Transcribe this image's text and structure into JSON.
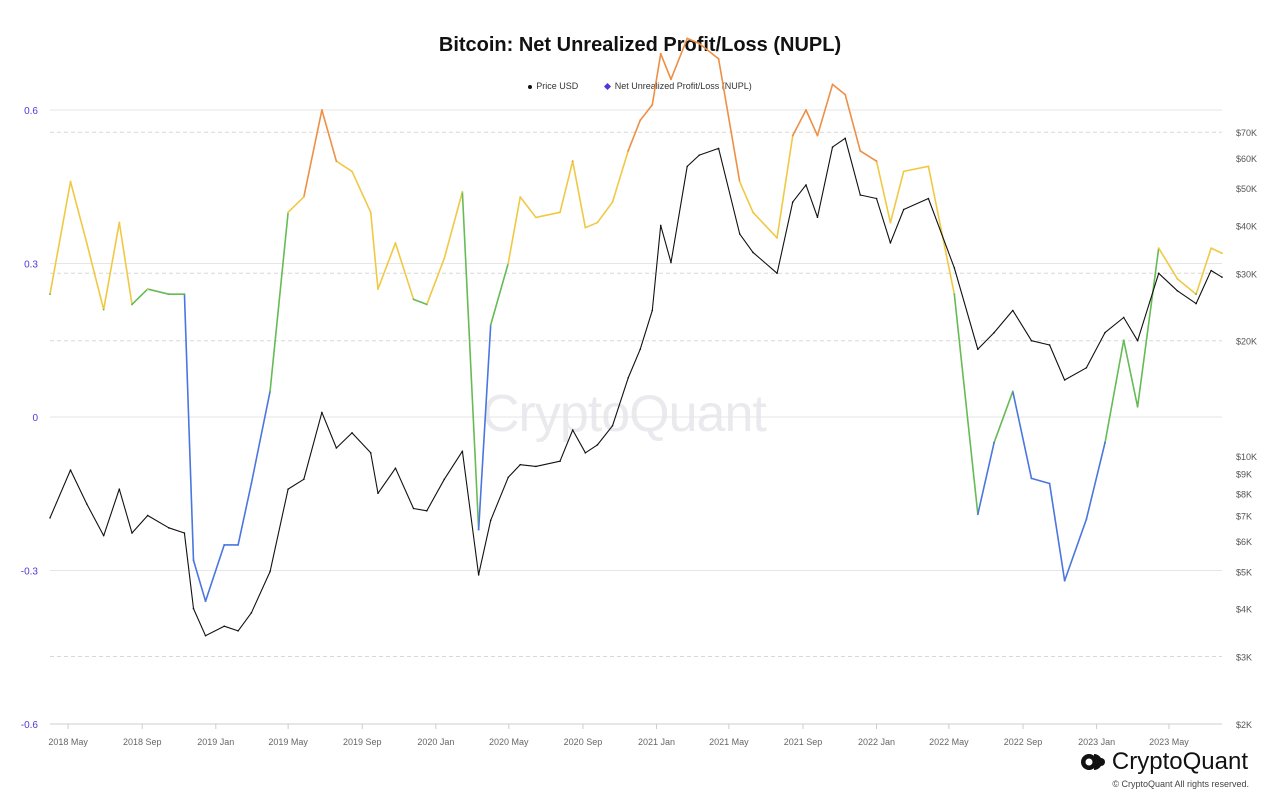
{
  "title": "Bitcoin: Net Unrealized Profit/Loss (NUPL)",
  "legend": [
    {
      "label": "Price USD",
      "marker": "circle",
      "color": "#111111"
    },
    {
      "label": "Net Unrealized Profit/Loss (NUPL)",
      "marker": "diamond",
      "color": "#4b3bd6"
    }
  ],
  "watermark": "CryptoQuant",
  "brand": {
    "name": "CryptoQuant",
    "copyright": "© CryptoQuant All rights reserved."
  },
  "colors": {
    "price": "#111111",
    "capitulation": "#4a76e0",
    "hope_fear": "#66bb55",
    "optimism_anxiety": "#f0c944",
    "belief_denial": "#ee8f45",
    "left_axis": "#4b3bd6"
  },
  "chart_data": {
    "type": "line",
    "title": "Bitcoin: Net Unrealized Profit/Loss (NUPL)",
    "x_tick_labels": [
      "2018 May",
      "2018 Sep",
      "2019 Jan",
      "2019 May",
      "2019 Sep",
      "2020 Jan",
      "2020 May",
      "2020 Sep",
      "2021 Jan",
      "2021 May",
      "2021 Sep",
      "2022 Jan",
      "2022 May",
      "2022 Sep",
      "2023 Jan",
      "2023 May"
    ],
    "x_ticks": [
      "2018-05-01",
      "2018-09-01",
      "2019-01-01",
      "2019-05-01",
      "2019-09-01",
      "2020-01-01",
      "2020-05-01",
      "2020-09-01",
      "2021-01-01",
      "2021-05-01",
      "2021-09-01",
      "2022-01-01",
      "2022-05-01",
      "2022-09-01",
      "2023-01-01",
      "2023-05-01"
    ],
    "x_range": [
      "2018-04-01",
      "2023-07-28"
    ],
    "y_left": {
      "label": "",
      "range": [
        -0.6,
        0.6
      ],
      "ticks": [
        "-0.6",
        "-0.3",
        "0",
        "0.3",
        "0.6"
      ],
      "tick_values": [
        -0.6,
        -0.3,
        0,
        0.3,
        0.6
      ]
    },
    "y_right": {
      "label": "",
      "scale": "log",
      "range": [
        2000,
        80000
      ],
      "ticks": [
        "$2K",
        "$3K",
        "$4K",
        "$5K",
        "$6K",
        "$7K",
        "$8K",
        "$9K",
        "$10K",
        "$20K",
        "$30K",
        "$40K",
        "$50K",
        "$60K",
        "$70K"
      ],
      "tick_values": [
        2000,
        3000,
        4000,
        5000,
        6000,
        7000,
        8000,
        9000,
        10000,
        20000,
        30000,
        40000,
        50000,
        60000,
        70000
      ]
    },
    "grid": true,
    "legend_position": "top-center",
    "series": [
      {
        "name": "Price USD",
        "axis": "right",
        "color": "#111111",
        "x": [
          "2018-04-01",
          "2018-05-05",
          "2018-06-01",
          "2018-06-29",
          "2018-07-25",
          "2018-08-15",
          "2018-09-10",
          "2018-10-15",
          "2018-11-10",
          "2018-11-25",
          "2018-12-15",
          "2019-01-15",
          "2019-02-07",
          "2019-03-01",
          "2019-04-01",
          "2019-05-01",
          "2019-05-27",
          "2019-06-26",
          "2019-07-20",
          "2019-08-15",
          "2019-09-15",
          "2019-09-27",
          "2019-10-26",
          "2019-11-25",
          "2019-12-17",
          "2020-01-15",
          "2020-02-14",
          "2020-03-12",
          "2020-04-01",
          "2020-04-30",
          "2020-05-20",
          "2020-06-15",
          "2020-07-25",
          "2020-08-15",
          "2020-09-05",
          "2020-09-25",
          "2020-10-20",
          "2020-11-15",
          "2020-12-05",
          "2020-12-25",
          "2021-01-08",
          "2021-01-25",
          "2021-02-21",
          "2021-03-13",
          "2021-04-14",
          "2021-05-19",
          "2021-06-10",
          "2021-07-20",
          "2021-08-15",
          "2021-09-06",
          "2021-09-25",
          "2021-10-20",
          "2021-11-10",
          "2021-12-05",
          "2022-01-01",
          "2022-01-24",
          "2022-02-15",
          "2022-03-28",
          "2022-05-10",
          "2022-06-18",
          "2022-07-15",
          "2022-08-15",
          "2022-09-15",
          "2022-10-15",
          "2022-11-09",
          "2022-12-15",
          "2023-01-15",
          "2023-02-15",
          "2023-03-10",
          "2023-04-14",
          "2023-05-15",
          "2023-06-15",
          "2023-07-10",
          "2023-07-28"
        ],
        "y": [
          6900,
          9200,
          7500,
          6200,
          8200,
          6300,
          7000,
          6500,
          6300,
          4000,
          3400,
          3600,
          3500,
          3900,
          5000,
          8200,
          8700,
          13000,
          10500,
          11500,
          10200,
          8000,
          9300,
          7300,
          7200,
          8700,
          10300,
          4900,
          6800,
          8800,
          9500,
          9400,
          9700,
          11700,
          10200,
          10700,
          12000,
          16000,
          19000,
          24000,
          40000,
          32000,
          57000,
          61000,
          63500,
          38000,
          34000,
          30000,
          46000,
          51000,
          42000,
          64000,
          67500,
          48000,
          47000,
          36000,
          44000,
          47000,
          31000,
          19000,
          21000,
          24000,
          20000,
          19500,
          15800,
          17000,
          21000,
          23000,
          20000,
          30000,
          27000,
          25000,
          30500,
          29300
        ]
      },
      {
        "name": "Net Unrealized Profit/Loss (NUPL)",
        "axis": "left",
        "color": "#4b3bd6",
        "x": [
          "2018-04-01",
          "2018-05-05",
          "2018-06-01",
          "2018-06-29",
          "2018-07-25",
          "2018-08-15",
          "2018-09-10",
          "2018-10-15",
          "2018-11-10",
          "2018-11-25",
          "2018-12-15",
          "2019-01-15",
          "2019-02-07",
          "2019-03-01",
          "2019-04-01",
          "2019-05-01",
          "2019-05-27",
          "2019-06-26",
          "2019-07-20",
          "2019-08-15",
          "2019-09-15",
          "2019-09-27",
          "2019-10-26",
          "2019-11-25",
          "2019-12-17",
          "2020-01-15",
          "2020-02-14",
          "2020-03-12",
          "2020-04-01",
          "2020-04-30",
          "2020-05-20",
          "2020-06-15",
          "2020-07-25",
          "2020-08-15",
          "2020-09-05",
          "2020-09-25",
          "2020-10-20",
          "2020-11-15",
          "2020-12-05",
          "2020-12-25",
          "2021-01-08",
          "2021-01-25",
          "2021-02-21",
          "2021-03-13",
          "2021-04-14",
          "2021-05-19",
          "2021-06-10",
          "2021-07-20",
          "2021-08-15",
          "2021-09-06",
          "2021-09-25",
          "2021-10-20",
          "2021-11-10",
          "2021-12-05",
          "2022-01-01",
          "2022-01-24",
          "2022-02-15",
          "2022-03-28",
          "2022-05-10",
          "2022-06-18",
          "2022-07-15",
          "2022-08-15",
          "2022-09-15",
          "2022-10-15",
          "2022-11-09",
          "2022-12-15",
          "2023-01-15",
          "2023-02-15",
          "2023-03-10",
          "2023-04-14",
          "2023-05-15",
          "2023-06-15",
          "2023-07-10",
          "2023-07-28"
        ],
        "y": [
          0.24,
          0.46,
          0.34,
          0.21,
          0.38,
          0.22,
          0.25,
          0.24,
          0.24,
          -0.28,
          -0.36,
          -0.25,
          -0.25,
          -0.13,
          0.05,
          0.4,
          0.43,
          0.6,
          0.5,
          0.48,
          0.4,
          0.25,
          0.34,
          0.23,
          0.22,
          0.31,
          0.44,
          -0.22,
          0.18,
          0.3,
          0.43,
          0.39,
          0.4,
          0.5,
          0.37,
          0.38,
          0.42,
          0.52,
          0.58,
          0.61,
          0.71,
          0.66,
          0.74,
          0.73,
          0.7,
          0.46,
          0.4,
          0.35,
          0.55,
          0.6,
          0.55,
          0.65,
          0.63,
          0.52,
          0.5,
          0.38,
          0.48,
          0.49,
          0.24,
          -0.19,
          -0.05,
          0.05,
          -0.12,
          -0.13,
          -0.32,
          -0.2,
          -0.05,
          0.15,
          0.02,
          0.33,
          0.27,
          0.24,
          0.33,
          0.32
        ]
      }
    ]
  }
}
